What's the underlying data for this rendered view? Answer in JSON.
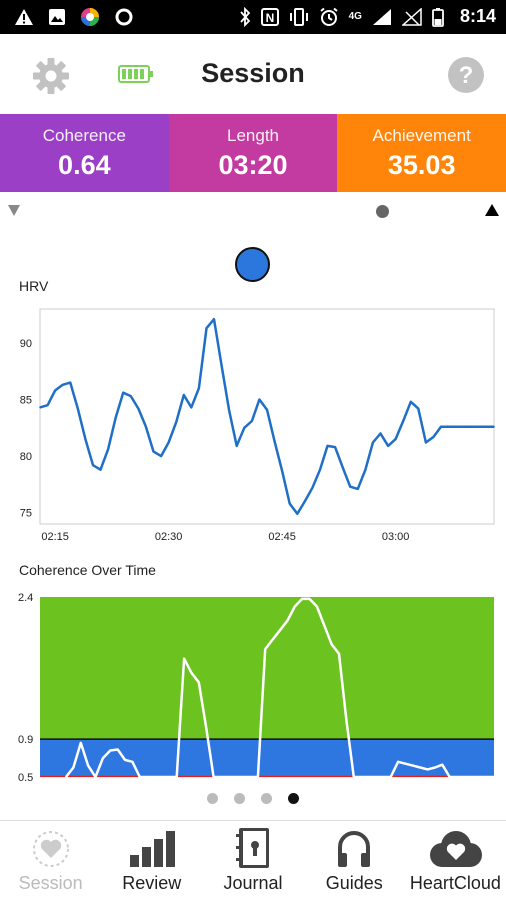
{
  "status_bar": {
    "network": "4G",
    "time": "8:14"
  },
  "header": {
    "title": "Session"
  },
  "stats": [
    {
      "label": "Coherence",
      "value": "0.64",
      "color": "#9b3fc6"
    },
    {
      "label": "Length",
      "value": "03:20",
      "color": "#c33ba0"
    },
    {
      "label": "Achievement",
      "value": "35.03",
      "color": "#ff850a"
    }
  ],
  "hrv_chart_title": "HRV",
  "coherence_chart_title": "Coherence Over Time",
  "chart_data": [
    {
      "type": "line",
      "title": "HRV",
      "xlabel": "",
      "ylabel": "",
      "x_ticks": [
        "02:15",
        "02:30",
        "02:45",
        "03:00"
      ],
      "y_ticks": [
        75,
        80,
        85,
        90
      ],
      "ylim": [
        74,
        93
      ],
      "x_range": [
        "02:13",
        "03:13"
      ],
      "grid": false,
      "line_color": "#1f6fc6",
      "series": [
        {
          "x": [
            "02:13",
            "02:14",
            "02:15",
            "02:16",
            "02:17",
            "02:18",
            "02:19",
            "02:20",
            "02:21",
            "02:22",
            "02:23",
            "02:24",
            "02:25",
            "02:26",
            "02:27",
            "02:28",
            "02:29",
            "02:30",
            "02:31",
            "02:32",
            "02:33",
            "02:34",
            "02:35",
            "02:36",
            "02:37",
            "02:38",
            "02:39",
            "02:40",
            "02:41",
            "02:42",
            "02:43",
            "02:44",
            "02:45",
            "02:46",
            "02:47",
            "02:48",
            "02:49",
            "02:50",
            "02:51",
            "02:52",
            "02:53",
            "02:54",
            "02:55",
            "02:56",
            "02:57",
            "02:58",
            "02:59",
            "03:00",
            "03:01",
            "03:02",
            "03:03",
            "03:04",
            "03:05",
            "03:06",
            "03:07",
            "03:08",
            "03:09",
            "03:10",
            "03:11",
            "03:12",
            "03:13"
          ],
          "y": [
            84.3,
            84.5,
            85.8,
            86.3,
            86.5,
            84.2,
            81.5,
            79.2,
            78.8,
            80.6,
            83.4,
            85.6,
            85.3,
            84.2,
            82.6,
            80.4,
            80,
            81.2,
            83,
            85.4,
            84.3,
            86,
            91.3,
            92.1,
            88,
            84,
            80.9,
            82.5,
            83.1,
            85,
            84.1,
            81.3,
            78.7,
            75.8,
            74.9,
            76,
            77.2,
            78.8,
            80.9,
            80.8,
            79,
            77.3,
            77.1,
            78.8,
            81.2,
            82,
            80.9,
            81.5,
            83.1,
            84.8,
            84.2,
            81.2,
            81.7,
            82.6,
            82.6,
            82.6,
            82.6,
            82.6,
            82.6,
            82.6,
            82.6
          ]
        }
      ]
    },
    {
      "type": "area",
      "title": "Coherence Over Time",
      "xlabel": "",
      "ylabel": "",
      "y_ticks": [
        0.5,
        0.9,
        2.4
      ],
      "ylim": [
        0.5,
        2.4
      ],
      "zones": [
        {
          "name": "low",
          "from": 0.5,
          "to": 0.52,
          "color": "#e0211f"
        },
        {
          "name": "medium",
          "from": 0.52,
          "to": 0.9,
          "color": "#2e76e0"
        },
        {
          "name": "high",
          "from": 0.9,
          "to": 2.4,
          "color": "#6cc21e"
        }
      ],
      "line_color": "#ffffff",
      "series": [
        {
          "x": [
            0,
            1,
            2,
            3,
            4,
            5,
            6,
            7,
            8,
            9,
            10,
            11,
            12,
            13,
            14,
            15,
            16,
            17,
            18,
            19,
            20,
            21,
            22,
            23,
            24,
            25,
            26,
            27,
            28,
            29,
            30,
            31,
            32,
            33,
            34,
            35,
            36,
            37,
            38,
            39,
            40,
            41,
            42,
            43,
            44,
            45,
            46,
            47,
            48,
            49,
            50,
            51,
            52,
            53,
            54,
            55,
            56,
            57,
            58
          ],
          "y": [
            0.5,
            0.6,
            0.86,
            0.62,
            0.5,
            0.7,
            0.78,
            0.79,
            0.68,
            0.66,
            0.5,
            0.5,
            0.5,
            0.5,
            0.5,
            0.5,
            1.75,
            1.6,
            1.5,
            1.02,
            0.5,
            0.5,
            0.5,
            0.5,
            0.5,
            0.5,
            0.5,
            1.85,
            1.95,
            2.05,
            2.15,
            2.3,
            2.38,
            2.38,
            2.3,
            2.1,
            1.9,
            1.8,
            1.1,
            0.5,
            0.5,
            0.5,
            0.5,
            0.5,
            0.5,
            0.66,
            0.64,
            0.62,
            0.6,
            0.58,
            0.6,
            0.63,
            0.5,
            0.5,
            0.5,
            0.5,
            0.5,
            0.5,
            0.5
          ]
        }
      ]
    }
  ],
  "pager": {
    "count": 4,
    "active": 3
  },
  "bottom_nav": [
    {
      "label": "Session",
      "icon": "heart-session-icon",
      "enabled": false
    },
    {
      "label": "Review",
      "icon": "bar-chart-icon",
      "enabled": true
    },
    {
      "label": "Journal",
      "icon": "journal-icon",
      "enabled": true
    },
    {
      "label": "Guides",
      "icon": "headphones-icon",
      "enabled": true
    },
    {
      "label": "HeartCloud",
      "icon": "heart-cloud-icon",
      "enabled": true
    }
  ]
}
